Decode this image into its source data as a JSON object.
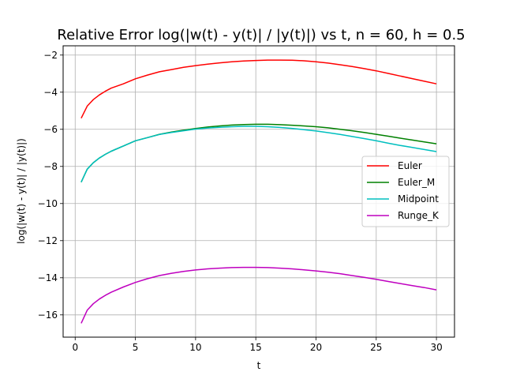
{
  "chart_data": {
    "type": "line",
    "title": "Relative Error log(|w(t) - y(t)| / |y(t)|) vs t, n = 60, h = 0.5",
    "xlabel": "t",
    "ylabel": "log(|w(t) - y(t)| / |y(t)|)",
    "xlim": [
      -1.0,
      31.5
    ],
    "ylim": [
      -17.2,
      -1.5
    ],
    "xticks": [
      0,
      5,
      10,
      15,
      20,
      25,
      30
    ],
    "yticks": [
      -16,
      -14,
      -12,
      -10,
      -8,
      -6,
      -4,
      -2
    ],
    "grid": true,
    "legend_position": "center-right",
    "series": [
      {
        "name": "Euler",
        "color": "#ff0000",
        "x": [
          0.5,
          1,
          1.5,
          2,
          2.5,
          3,
          4,
          5,
          6,
          7,
          8,
          9,
          10,
          11,
          12,
          13,
          14,
          15,
          16,
          17,
          18,
          19,
          20,
          21,
          22,
          23,
          24,
          25,
          26,
          27,
          28,
          29,
          30
        ],
        "y": [
          -5.4,
          -4.75,
          -4.4,
          -4.15,
          -3.95,
          -3.78,
          -3.55,
          -3.28,
          -3.08,
          -2.9,
          -2.78,
          -2.66,
          -2.57,
          -2.49,
          -2.42,
          -2.36,
          -2.32,
          -2.29,
          -2.27,
          -2.27,
          -2.28,
          -2.31,
          -2.36,
          -2.43,
          -2.52,
          -2.62,
          -2.73,
          -2.85,
          -2.99,
          -3.13,
          -3.27,
          -3.41,
          -3.55
        ]
      },
      {
        "name": "Euler_M",
        "color": "#008000",
        "x": [
          0.5,
          1,
          1.5,
          2,
          2.5,
          3,
          4,
          5,
          6,
          7,
          8,
          9,
          10,
          11,
          12,
          13,
          14,
          15,
          16,
          17,
          18,
          19,
          20,
          21,
          22,
          23,
          24,
          25,
          26,
          27,
          28,
          29,
          30
        ],
        "y": [
          -8.85,
          -8.15,
          -7.8,
          -7.55,
          -7.35,
          -7.18,
          -6.9,
          -6.62,
          -6.45,
          -6.27,
          -6.15,
          -6.05,
          -5.96,
          -5.88,
          -5.82,
          -5.77,
          -5.74,
          -5.73,
          -5.73,
          -5.75,
          -5.78,
          -5.82,
          -5.86,
          -5.92,
          -6.0,
          -6.08,
          -6.17,
          -6.27,
          -6.37,
          -6.48,
          -6.58,
          -6.68,
          -6.78
        ]
      },
      {
        "name": "Midpoint",
        "color": "#00bfbf",
        "x": [
          0.5,
          1,
          1.5,
          2,
          2.5,
          3,
          4,
          5,
          6,
          7,
          8,
          9,
          10,
          11,
          12,
          13,
          14,
          15,
          16,
          17,
          18,
          19,
          20,
          21,
          22,
          23,
          24,
          25,
          26,
          27,
          28,
          29,
          30
        ],
        "y": [
          -8.85,
          -8.15,
          -7.8,
          -7.55,
          -7.35,
          -7.18,
          -6.9,
          -6.62,
          -6.45,
          -6.28,
          -6.17,
          -6.08,
          -5.99,
          -5.93,
          -5.89,
          -5.86,
          -5.84,
          -5.84,
          -5.86,
          -5.9,
          -5.95,
          -6.02,
          -6.09,
          -6.18,
          -6.28,
          -6.39,
          -6.5,
          -6.62,
          -6.75,
          -6.87,
          -6.98,
          -7.09,
          -7.2
        ]
      },
      {
        "name": "Runge_K",
        "color": "#bf00bf",
        "x": [
          0.5,
          1,
          1.5,
          2,
          2.5,
          3,
          4,
          5,
          6,
          7,
          8,
          9,
          10,
          11,
          12,
          13,
          14,
          15,
          16,
          17,
          18,
          19,
          20,
          21,
          22,
          23,
          24,
          25,
          26,
          27,
          28,
          29,
          30
        ],
        "y": [
          -16.45,
          -15.75,
          -15.4,
          -15.15,
          -14.95,
          -14.78,
          -14.5,
          -14.25,
          -14.05,
          -13.88,
          -13.76,
          -13.66,
          -13.58,
          -13.52,
          -13.48,
          -13.45,
          -13.44,
          -13.44,
          -13.45,
          -13.48,
          -13.52,
          -13.57,
          -13.63,
          -13.7,
          -13.78,
          -13.88,
          -13.98,
          -14.08,
          -14.2,
          -14.31,
          -14.42,
          -14.53,
          -14.65
        ]
      }
    ]
  }
}
